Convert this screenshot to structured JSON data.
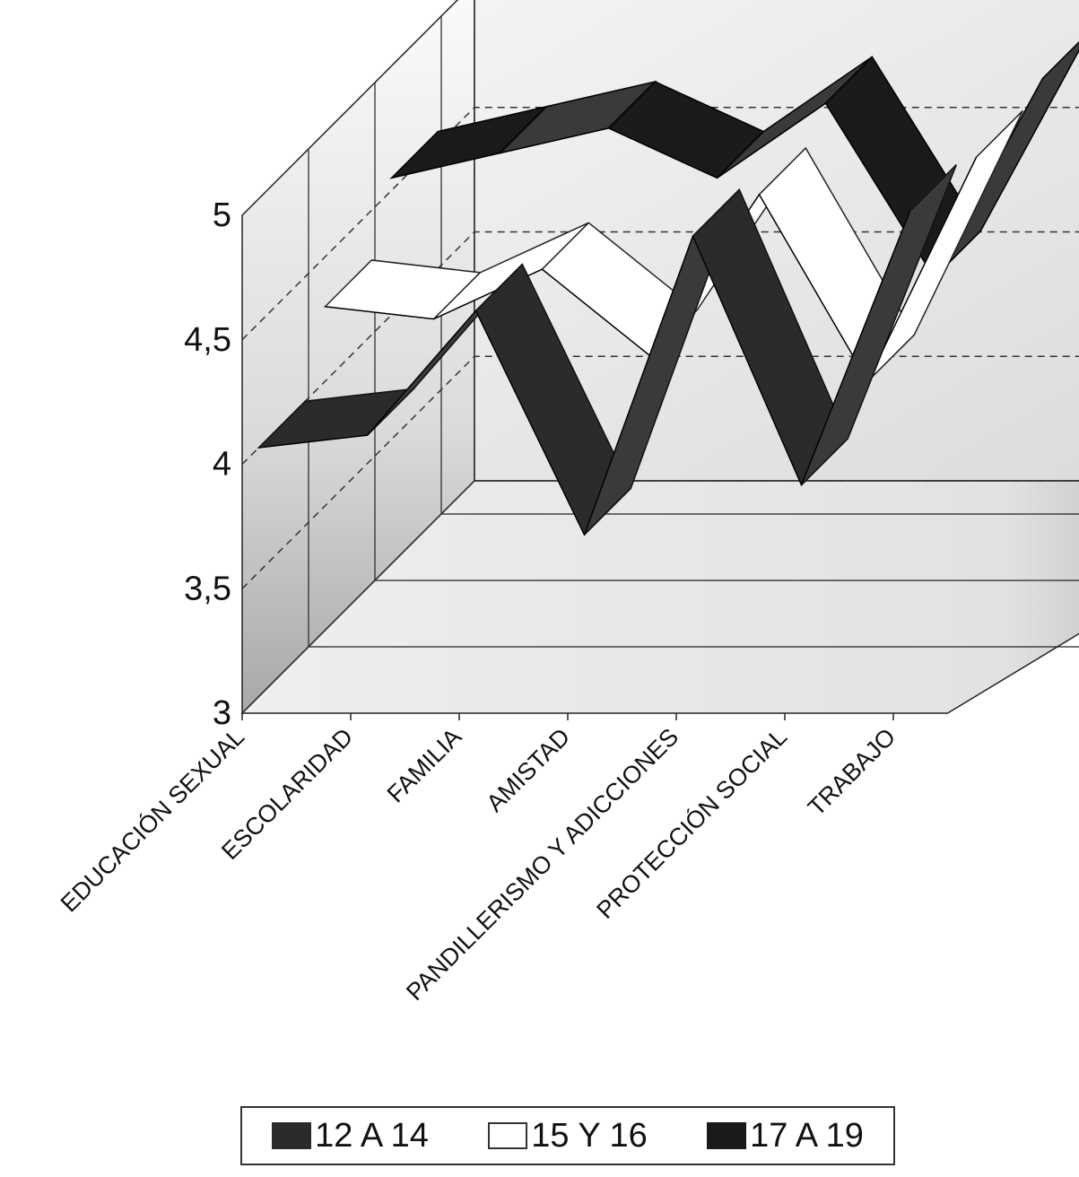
{
  "chart_data": {
    "type": "area",
    "title": "",
    "xlabel": "",
    "ylabel": "",
    "ylim": [
      3,
      5
    ],
    "yticks": [
      "3",
      "3,5",
      "4",
      "4,5",
      "5"
    ],
    "categories": [
      "EDUCACIÓN SEXUAL",
      "ESCOLARIDAD",
      "FAMILIA",
      "AMISTAD",
      "PANDILLERISMO Y ADICCIONES",
      "PROTECCIÓN SOCIAL",
      "TRABAJO"
    ],
    "series": [
      {
        "name": "12 A 14",
        "values": [
          4.0,
          4.05,
          4.55,
          3.65,
          4.85,
          3.85,
          4.95
        ],
        "color": "#2b2b2b"
      },
      {
        "name": "15 Y 16",
        "values": [
          4.3,
          4.25,
          4.45,
          4.1,
          4.75,
          4.0,
          4.9
        ],
        "color": "#ffffff"
      },
      {
        "name": "17 A 19",
        "values": [
          4.55,
          4.65,
          4.75,
          4.55,
          4.85,
          4.15,
          4.95
        ],
        "color": "#1a1a1a"
      }
    ],
    "grid": true,
    "legend_position": "bottom"
  }
}
